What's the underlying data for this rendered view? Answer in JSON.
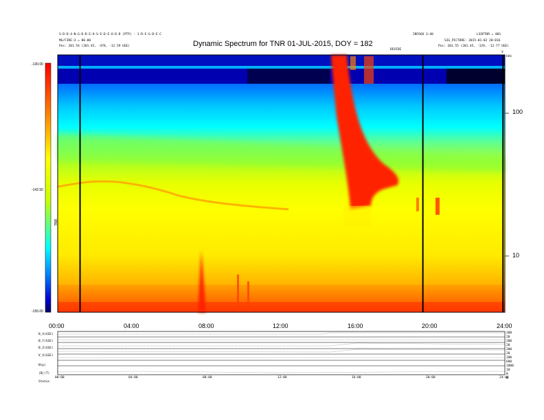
{
  "header": {
    "left_line1": "S-D-D-4-N-G-D-R-E-O-S-E-D-E-O-D-D (PTP) - 1-R-E-G-D-E-C",
    "left_line2": "MG/FIRE:3 = 80.00",
    "left_line3": "Pos:    201.54 (201.45, -478, -12.59 UGE)",
    "right_line1": "INFOGO 3:40",
    "right_line2": "LSSPTOR = 801",
    "right_line3": "SIG_PICTURE: 2015-01-02 20:016",
    "right_line4": "Pos:    201.55 (201.45, -129, -12.77 UGE)",
    "annotation": "DEVIDE",
    "corner_v": "V",
    "corner_k": "kHz"
  },
  "chart_data": {
    "type": "heatmap",
    "title": "Dynamic Spectrum for TNR 01-JUL-2015, DOY = 182",
    "x_ticks": [
      "00:00",
      "04:00",
      "08:00",
      "12:00",
      "16:00",
      "20:00",
      "24:00"
    ],
    "xlim_hours": [
      0,
      24
    ],
    "y_right_ticks": [
      "100",
      "10"
    ],
    "y_scale": "log",
    "colorbar": {
      "ticks": [
        "-130.00",
        "-142.50",
        "-155.00"
      ],
      "label": "TNR",
      "range": [
        -155.0,
        -130.0
      ]
    },
    "colormap": [
      "#000000",
      "#0000a0",
      "#0000ff",
      "#0060ff",
      "#00c8ff",
      "#00ffff",
      "#60ff80",
      "#c8ff00",
      "#ffff00",
      "#ffc000",
      "#ff8000",
      "#ff2000"
    ],
    "vertical_gaps_hours": [
      1.2,
      19.6,
      23.9
    ],
    "features": {
      "radio_burst_start_hour": 14.8,
      "radio_burst_end_hour": 17.6
    },
    "lower_panel": {
      "row_labels": [
        "B_X(GSE)",
        "B_Y(GSE)",
        "B_Z(GSE)",
        "V_X(GSE)",
        "N(p)",
        "|B|(T)",
        "Status"
      ],
      "right_labels": [
        "200",
        "20",
        "200",
        "20",
        "200",
        "20",
        "200",
        "600",
        "1000",
        "10",
        "0",
        "0"
      ],
      "x_ticks": [
        "00:00",
        "04:00",
        "08:00",
        "12:00",
        "16:00",
        "20:00",
        "24:00"
      ]
    }
  }
}
